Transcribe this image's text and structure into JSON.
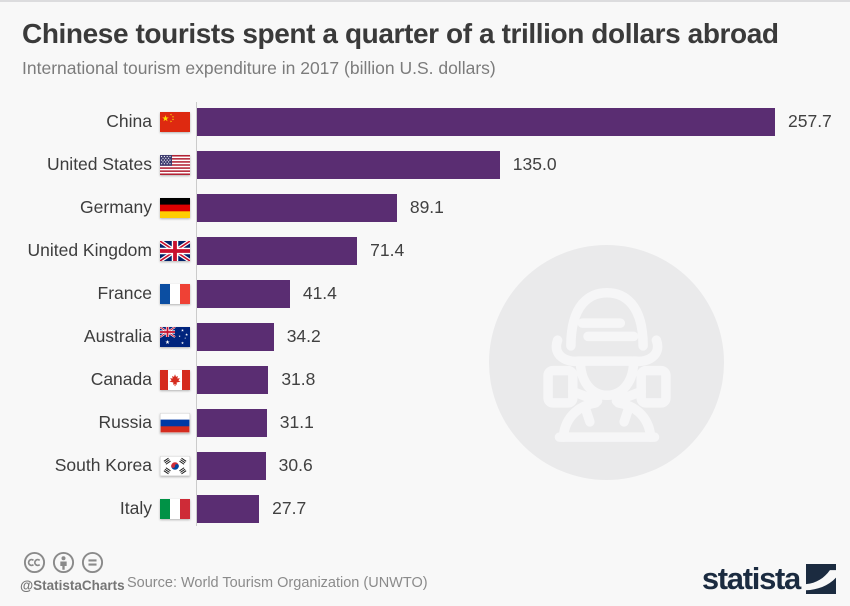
{
  "header": {
    "title": "Chinese tourists spent a quarter of a trillion dollars abroad",
    "subtitle": "International tourism expenditure in 2017 (billion U.S. dollars)"
  },
  "chart_data": {
    "type": "bar",
    "orientation": "horizontal",
    "title": "Chinese tourists spent a quarter of a trillion dollars abroad",
    "subtitle": "International tourism expenditure in 2017 (billion U.S. dollars)",
    "unit": "billion U.S. dollars",
    "year": "2017",
    "categories": [
      "China",
      "United States",
      "Germany",
      "United Kingdom",
      "France",
      "Australia",
      "Canada",
      "Russia",
      "South Korea",
      "Italy"
    ],
    "values": [
      257.7,
      135.0,
      89.1,
      71.4,
      41.4,
      34.2,
      31.8,
      31.1,
      30.6,
      27.7
    ],
    "value_labels": [
      "257.7",
      "135.0",
      "89.1",
      "71.4",
      "41.4",
      "34.2",
      "31.8",
      "31.1",
      "30.6",
      "27.7"
    ],
    "bar_color": "#5a2d72",
    "xlim": [
      0,
      258
    ],
    "grid": false,
    "legend": false,
    "value_labels_position": "end-of-bar"
  },
  "watermark": {
    "icon": "tourist-icon",
    "circle_color": "#eaeaeb"
  },
  "footer": {
    "license_icons": [
      "cc-icon",
      "attribution-person-icon",
      "no-derivatives-icon"
    ],
    "attribution": "@StatistaCharts",
    "source": "Source: World Tourism Organization (UNWTO)",
    "brand": "statista"
  },
  "colors": {
    "background": "#f8f8f8",
    "bar": "#5a2d72",
    "title_text": "#3a3a3a",
    "subtitle_text": "#7c7c7c",
    "axis_line": "#cbcbcb",
    "footer_text": "#8b8b8b",
    "brand_navy": "#1b2b40"
  }
}
